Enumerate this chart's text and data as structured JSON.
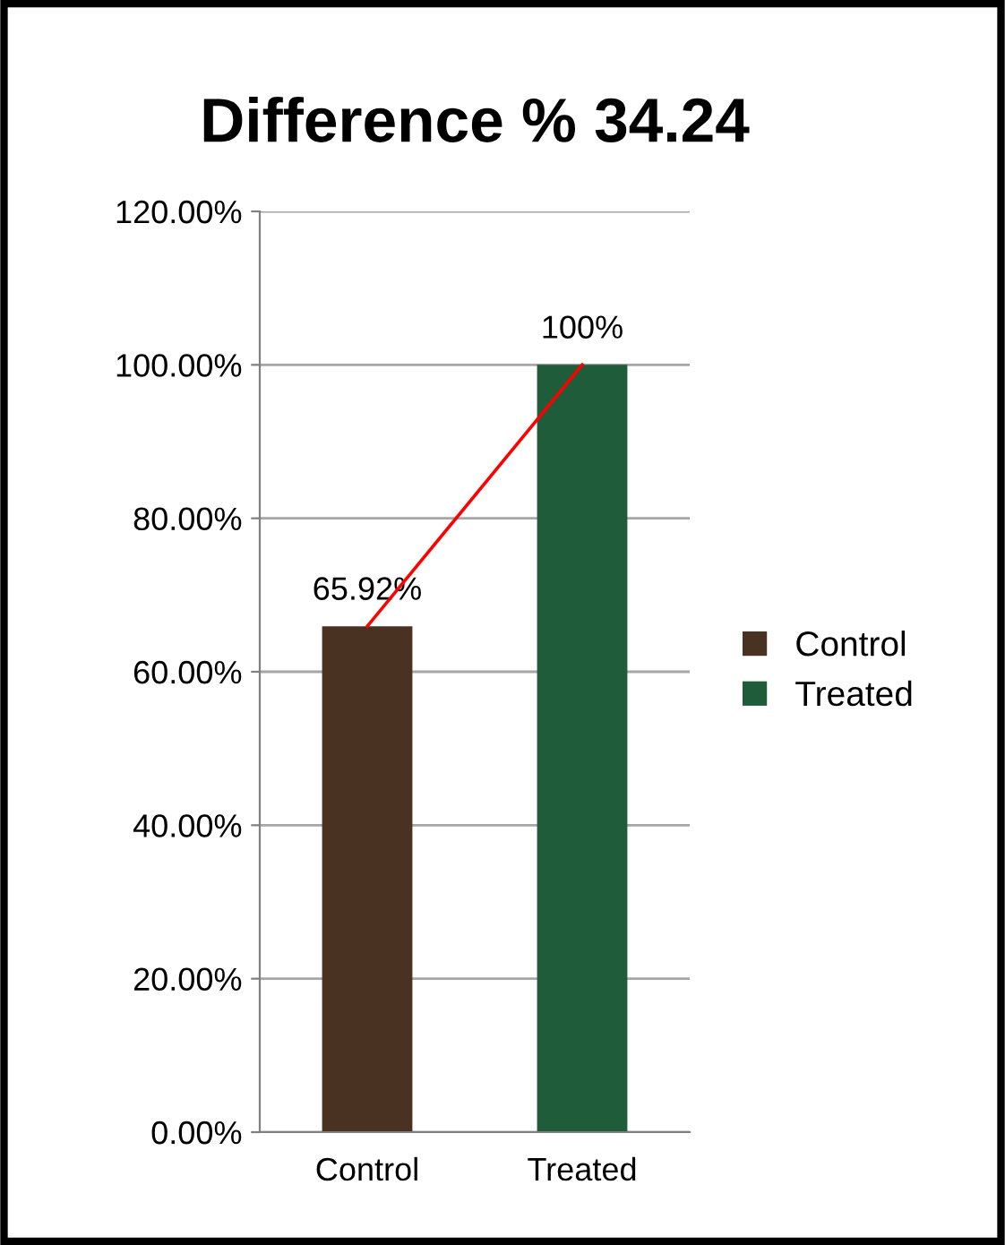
{
  "chart_data": {
    "type": "bar",
    "title": "Difference % 34.24",
    "categories": [
      "Control",
      "Treated"
    ],
    "series": [
      {
        "name": "Control",
        "color": "#4a3222",
        "values": [
          65.92,
          null
        ],
        "value_labels": [
          "65.92%",
          null
        ]
      },
      {
        "name": "Treated",
        "color": "#1f5c3a",
        "values": [
          null,
          100
        ],
        "value_labels": [
          null,
          "100%"
        ]
      },
      {
        "type": "line",
        "color": "#ff0000",
        "values": [
          65.92,
          100
        ]
      }
    ],
    "ylim": [
      0,
      120
    ],
    "yticks": [
      {
        "value": 0,
        "label": "0.00%"
      },
      {
        "value": 20,
        "label": "20.00%"
      },
      {
        "value": 40,
        "label": "40.00%"
      },
      {
        "value": 60,
        "label": "60.00%"
      },
      {
        "value": 80,
        "label": "80.00%"
      },
      {
        "value": 100,
        "label": "100.00%"
      },
      {
        "value": 120,
        "label": "120.00%"
      }
    ],
    "grid": "y",
    "legend": "right",
    "marker": "none",
    "line_style": "solid"
  }
}
